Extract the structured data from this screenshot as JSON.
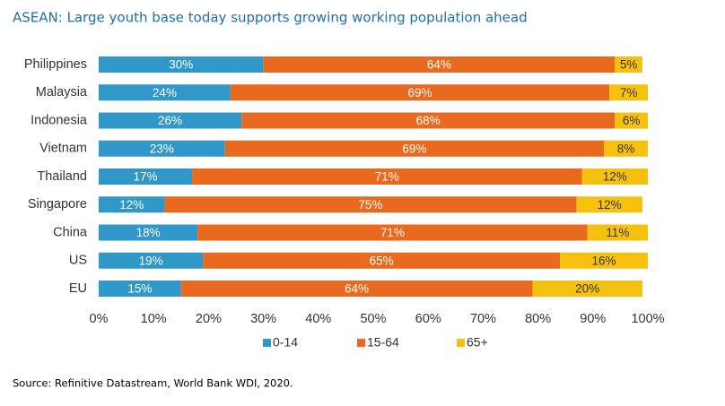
{
  "chart_data": {
    "type": "bar",
    "orientation": "horizontal",
    "stacked": true,
    "title": "ASEAN: Large youth base today supports growing working population ahead",
    "source": "Source: Refinitive Datastream, World Bank WDI, 2020.",
    "categories": [
      "Philippines",
      "Malaysia",
      "Indonesia",
      "Vietnam",
      "Thailand",
      "Singapore",
      "China",
      "US",
      "EU"
    ],
    "series": [
      {
        "name": "0-14",
        "color": "#3098c9",
        "values": [
          30,
          24,
          26,
          23,
          17,
          12,
          18,
          19,
          15
        ],
        "value_labels": [
          "30%",
          "24%",
          "26%",
          "23%",
          "17%",
          "12%",
          "18%",
          "19%",
          "15%"
        ]
      },
      {
        "name": "15-64",
        "color": "#e9691e",
        "values": [
          64,
          69,
          68,
          69,
          71,
          75,
          71,
          65,
          64
        ],
        "value_labels": [
          "64%",
          "69%",
          "68%",
          "69%",
          "71%",
          "75%",
          "71%",
          "65%",
          "64%"
        ]
      },
      {
        "name": "65+",
        "color": "#f6c10e",
        "values": [
          5,
          7,
          6,
          8,
          12,
          12,
          11,
          16,
          20
        ],
        "value_labels": [
          "5%",
          "7%",
          "6%",
          "8%",
          "12%",
          "12%",
          "11%",
          "16%",
          "20%"
        ]
      }
    ],
    "xlim": [
      0,
      100
    ],
    "xticks": [
      {
        "value": 0,
        "label": "0%"
      },
      {
        "value": 10,
        "label": "10%"
      },
      {
        "value": 20,
        "label": "20%"
      },
      {
        "value": 30,
        "label": "30%"
      },
      {
        "value": 40,
        "label": "40%"
      },
      {
        "value": 50,
        "label": "50%"
      },
      {
        "value": 60,
        "label": "60%"
      },
      {
        "value": 70,
        "label": "70%"
      },
      {
        "value": 80,
        "label": "80%"
      },
      {
        "value": 90,
        "label": "90%"
      },
      {
        "value": 100,
        "label": "100%"
      }
    ],
    "legend": "bottom",
    "grid": false
  }
}
